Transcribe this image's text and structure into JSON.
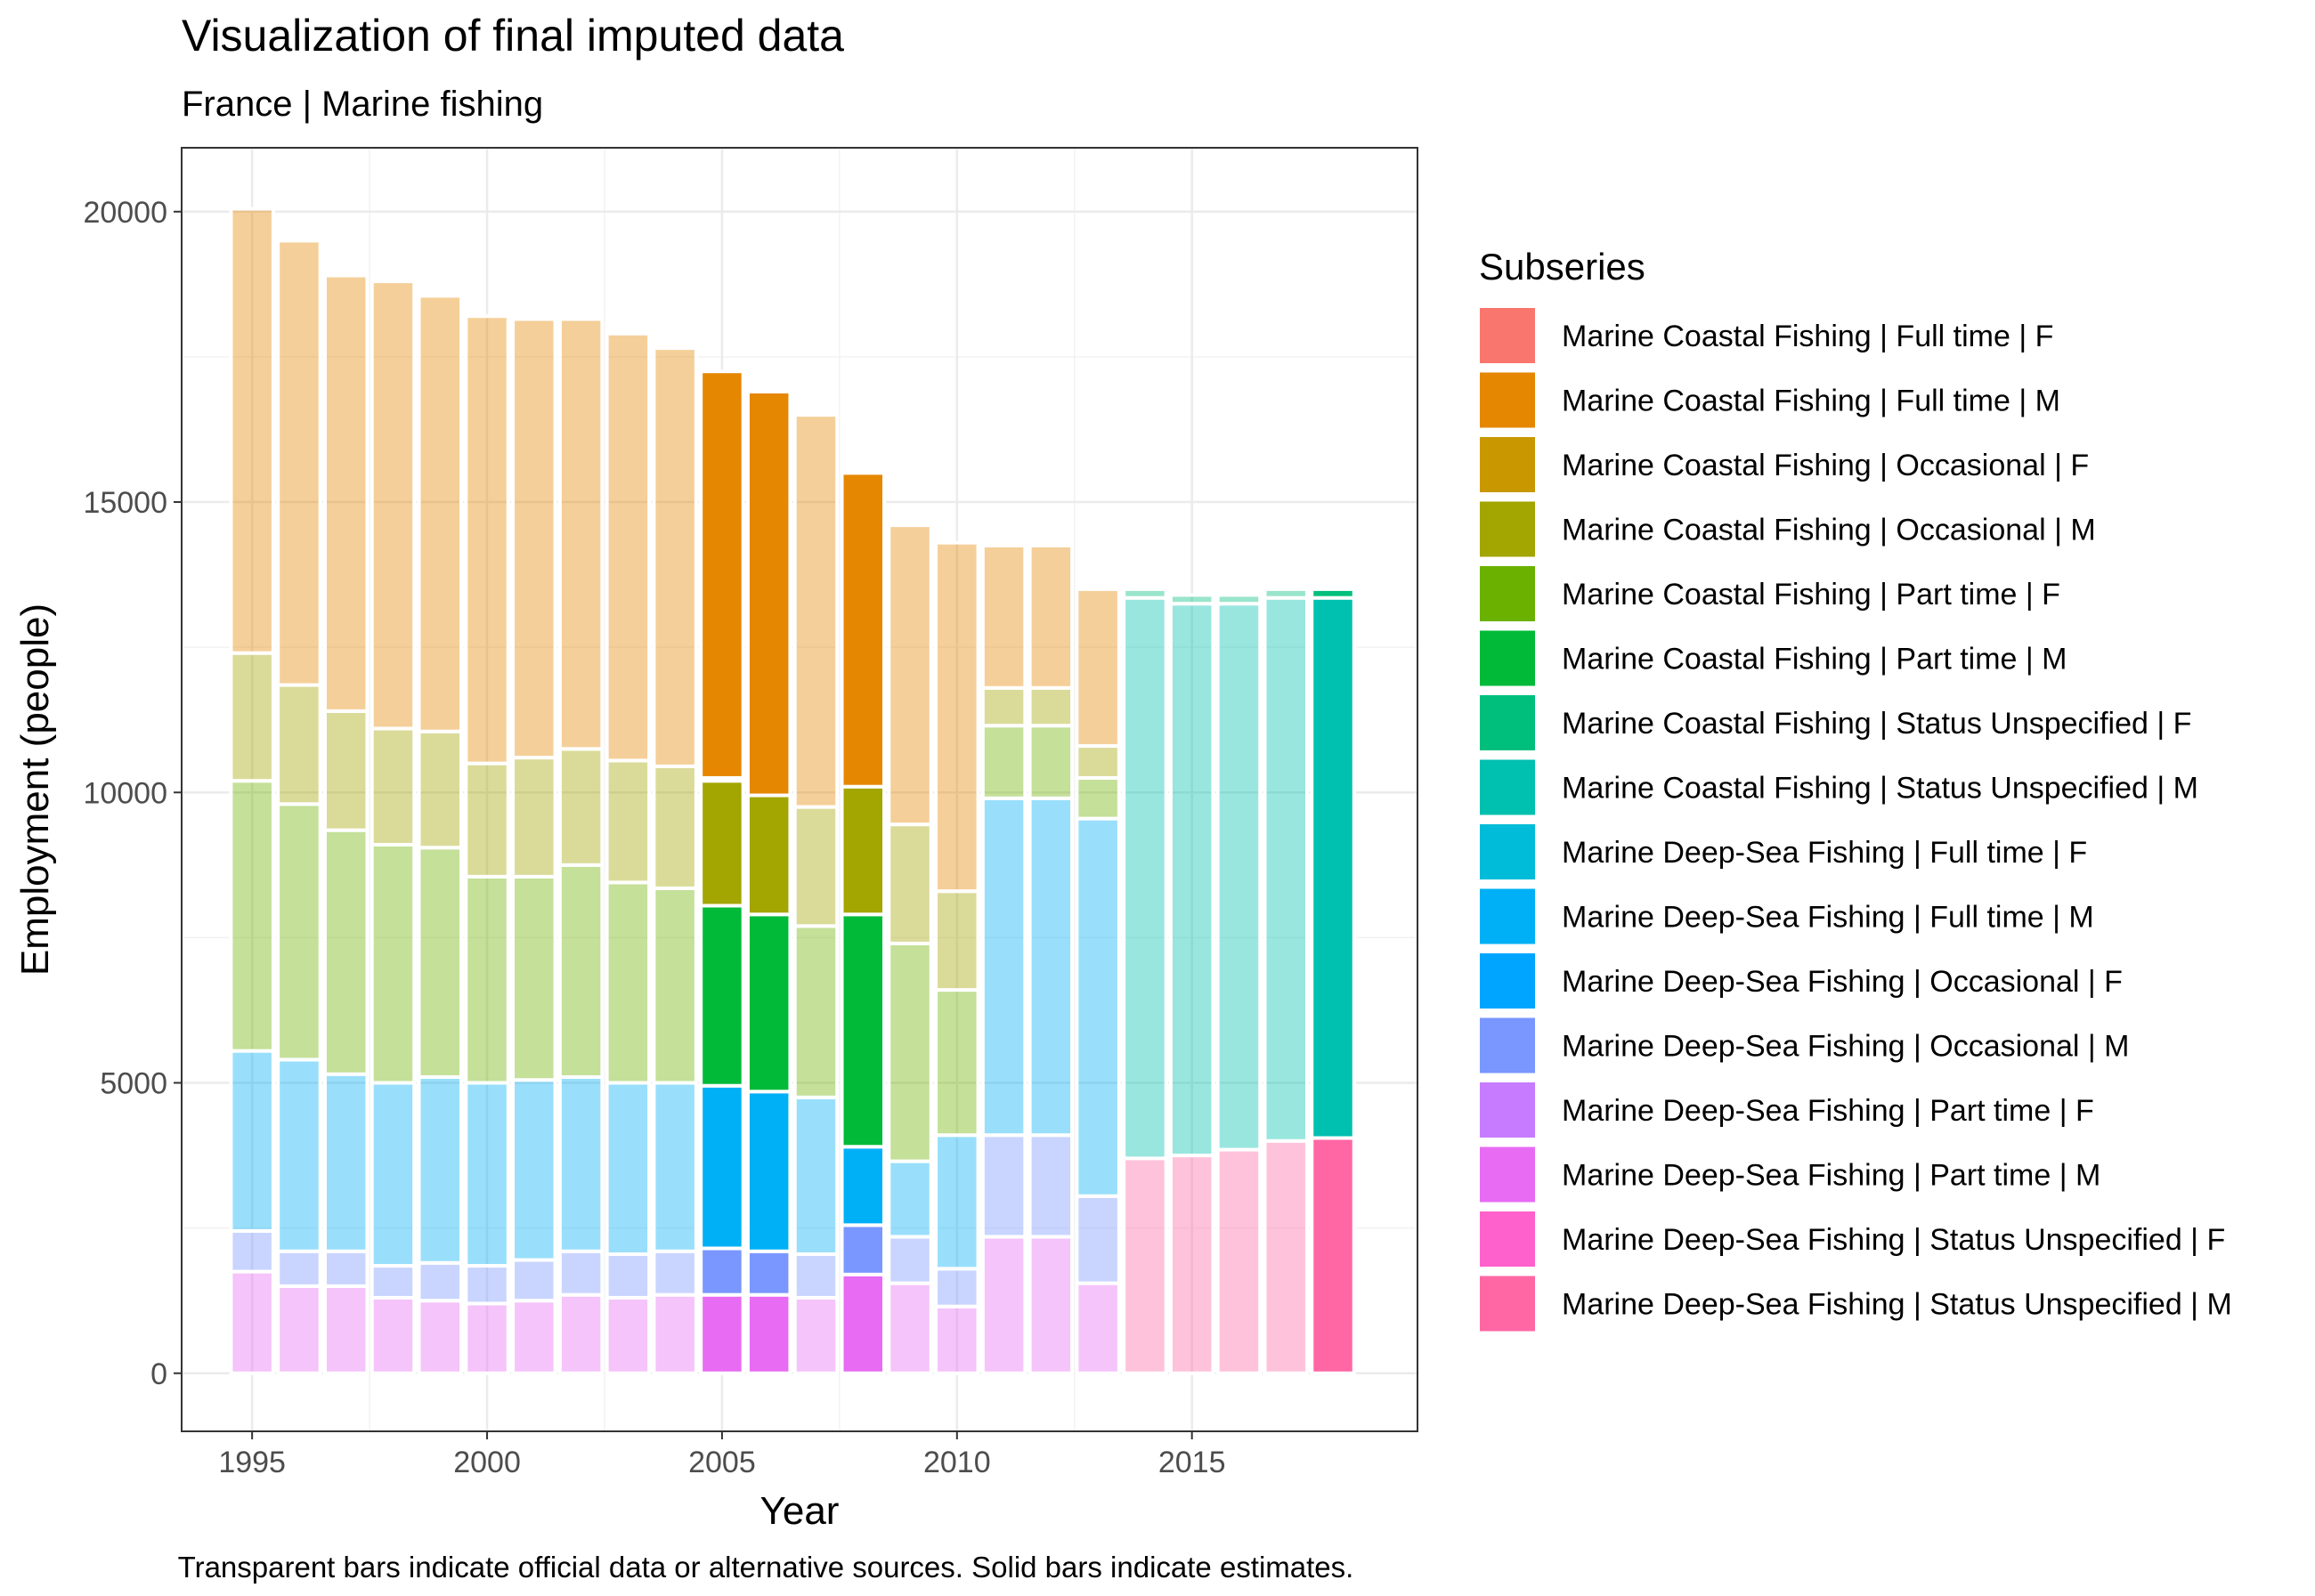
{
  "chart_data": {
    "type": "bar",
    "stacked": true,
    "title": "Visualization of final imputed data",
    "subtitle": "France | Marine fishing",
    "xlabel": "Year",
    "ylabel": "Employment (people)",
    "caption": "Transparent bars indicate official data or alternative sources. Solid bars indicate estimates.",
    "legend_title": "Subseries",
    "legend_position": "right",
    "grid": true,
    "xlim": [
      1993.5,
      2019.8
    ],
    "ylim": [
      -1000,
      21100
    ],
    "x_ticks": [
      1995,
      2000,
      2005,
      2010,
      2015
    ],
    "y_ticks": [
      0,
      5000,
      10000,
      15000,
      20000
    ],
    "categories": [
      1995,
      1996,
      1997,
      1998,
      1999,
      2000,
      2001,
      2002,
      2003,
      2004,
      2005,
      2006,
      2007,
      2008,
      2009,
      2010,
      2011,
      2012,
      2013,
      2014,
      2015,
      2016,
      2017,
      2018
    ],
    "estimated": [
      false,
      false,
      false,
      false,
      false,
      false,
      false,
      false,
      false,
      false,
      true,
      true,
      false,
      true,
      false,
      false,
      false,
      false,
      false,
      false,
      false,
      false,
      false,
      true
    ],
    "series": [
      {
        "name": "Marine Coastal Fishing | Full time | F",
        "color": "#F8766D",
        "values": [
          0,
          0,
          0,
          0,
          0,
          0,
          0,
          0,
          0,
          0,
          0,
          0,
          0,
          0,
          0,
          0,
          0,
          0,
          0,
          0,
          0,
          0,
          0,
          0
        ]
      },
      {
        "name": "Marine Coastal Fishing | Full time | M",
        "color": "#E38900",
        "values": [
          7650,
          7650,
          7500,
          7700,
          7500,
          7700,
          7550,
          7400,
          7350,
          7200,
          7000,
          6950,
          6750,
          5400,
          5150,
          6000,
          2450,
          2450,
          2700,
          0,
          0,
          0,
          0,
          0
        ]
      },
      {
        "name": "Marine Coastal Fishing | Occasional | F",
        "color": "#C49A00",
        "values": [
          0,
          0,
          0,
          0,
          0,
          0,
          0,
          0,
          0,
          0,
          50,
          0,
          0,
          0,
          0,
          0,
          0,
          0,
          0,
          0,
          0,
          0,
          0,
          0
        ]
      },
      {
        "name": "Marine Coastal Fishing | Occasional | M",
        "color": "#99A800",
        "values": [
          2200,
          2050,
          2050,
          2000,
          2000,
          1950,
          2050,
          2000,
          2100,
          2100,
          2150,
          2050,
          2050,
          2200,
          2050,
          1700,
          650,
          650,
          550,
          0,
          0,
          0,
          0,
          0
        ]
      },
      {
        "name": "Marine Coastal Fishing | Part time | F",
        "color": "#53B400",
        "values": [
          4650,
          4400,
          4200,
          4100,
          3950,
          3550,
          3500,
          3650,
          3450,
          3350,
          0,
          0,
          2950,
          0,
          3750,
          2500,
          1250,
          1250,
          700,
          0,
          0,
          0,
          0,
          0
        ]
      },
      {
        "name": "Marine Coastal Fishing | Part time | M",
        "color": "#00BC56",
        "values": [
          0,
          0,
          0,
          0,
          0,
          0,
          0,
          0,
          0,
          0,
          3100,
          3050,
          0,
          4000,
          0,
          0,
          0,
          0,
          0,
          0,
          0,
          0,
          0,
          0
        ]
      },
      {
        "name": "Marine Coastal Fishing | Status Unspecified | F",
        "color": "#00C094",
        "values": [
          0,
          0,
          0,
          0,
          0,
          0,
          0,
          0,
          0,
          0,
          0,
          0,
          0,
          0,
          0,
          0,
          0,
          0,
          0,
          150,
          150,
          150,
          150,
          150
        ]
      },
      {
        "name": "Marine Coastal Fishing | Status Unspecified | M",
        "color": "#00BFC4",
        "values": [
          0,
          0,
          0,
          0,
          0,
          0,
          0,
          0,
          0,
          0,
          0,
          0,
          0,
          0,
          0,
          0,
          0,
          0,
          0,
          9650,
          9500,
          9400,
          9350,
          9300
        ]
      },
      {
        "name": "Marine Deep-Sea Fishing | Full time | F",
        "color": "#00B6EB",
        "values": [
          0,
          0,
          0,
          0,
          0,
          0,
          0,
          0,
          0,
          0,
          0,
          0,
          0,
          0,
          0,
          0,
          0,
          0,
          0,
          0,
          0,
          0,
          0,
          0
        ]
      },
      {
        "name": "Marine Deep-Sea Fishing | Full time | M",
        "color": "#06A4FF",
        "values": [
          3100,
          3300,
          3050,
          3150,
          3200,
          3150,
          3100,
          3000,
          2950,
          2900,
          2800,
          2750,
          2700,
          1350,
          1300,
          2300,
          5800,
          5800,
          6500,
          0,
          0,
          0,
          0,
          0
        ]
      },
      {
        "name": "Marine Deep-Sea Fishing | Occasional | F",
        "color": "#A58AFF",
        "values": [
          0,
          0,
          0,
          0,
          0,
          0,
          0,
          0,
          0,
          0,
          0,
          0,
          0,
          0,
          0,
          0,
          0,
          0,
          0,
          0,
          0,
          0,
          0,
          0
        ]
      },
      {
        "name": "Marine Deep-Sea Fishing | Occasional | M",
        "color": "#DF70F8",
        "values": [
          700,
          600,
          600,
          550,
          650,
          650,
          700,
          750,
          750,
          750,
          800,
          750,
          750,
          850,
          800,
          650,
          1750,
          1750,
          1500,
          0,
          0,
          0,
          0,
          0
        ]
      },
      {
        "name": "Marine Deep-Sea Fishing | Part time | F",
        "color": "#FB61D7",
        "values": [
          0,
          0,
          0,
          0,
          0,
          0,
          0,
          0,
          0,
          0,
          0,
          0,
          0,
          0,
          0,
          0,
          0,
          0,
          0,
          0,
          0,
          0,
          0,
          0
        ]
      },
      {
        "name": "Marine Deep-Sea Fishing | Part time | M",
        "color": "#FF66A8",
        "values": [
          1750,
          1500,
          1500,
          1300,
          1250,
          1200,
          1250,
          1350,
          1300,
          1350,
          1350,
          1350,
          1300,
          1700,
          1550,
          1150,
          2350,
          2350,
          1550,
          0,
          0,
          0,
          0,
          0
        ]
      },
      {
        "name": "Marine Deep-Sea Fishing | Status Unspecified | F",
        "color": "#FF61CC",
        "values": [
          0,
          0,
          0,
          0,
          0,
          0,
          0,
          0,
          0,
          0,
          0,
          0,
          0,
          0,
          0,
          0,
          0,
          0,
          0,
          0,
          0,
          0,
          0,
          0
        ]
      },
      {
        "name": "Marine Deep-Sea Fishing | Status Unspecified | M",
        "color": "#FF67A4",
        "values": [
          0,
          0,
          0,
          0,
          0,
          0,
          0,
          0,
          0,
          0,
          0,
          0,
          0,
          0,
          0,
          0,
          0,
          0,
          0,
          3700,
          3750,
          3850,
          4000,
          4050
        ]
      }
    ],
    "legend_colors": [
      "#F8766D",
      "#E58700",
      "#C99800",
      "#A3A500",
      "#6BB100",
      "#00BA38",
      "#00BF7D",
      "#00C0AF",
      "#00BCD8",
      "#00B0F6",
      "#00A5FF",
      "#7997FF",
      "#C77CFF",
      "#E76BF3",
      "#FF61CC",
      "#FF67A4"
    ],
    "fill_colors": [
      "#F8766D",
      "#E58700",
      "#C99800",
      "#A3A500",
      "#6BB100",
      "#00BA38",
      "#00BF7D",
      "#00C0AF",
      "#00BCD8",
      "#00B0F6",
      "#00A5FF",
      "#7997FF",
      "#C77CFF",
      "#E76BF3",
      "#FF61CC",
      "#FF67A4"
    ]
  }
}
